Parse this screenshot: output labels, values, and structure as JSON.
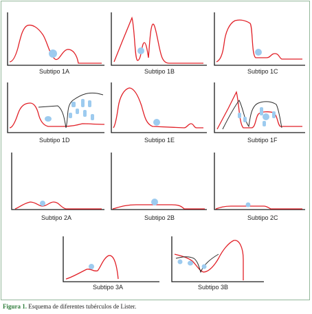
{
  "figure": {
    "panel_labels": {
      "1A": "Subtipo 1A",
      "1B": "Subtipo 1B",
      "1C": "Subtipo 1C",
      "1D": "Subtipo 1D",
      "1E": "Subtipo 1E",
      "1F": "Subtipo 1F",
      "2A": "Subtipo 2A",
      "2B": "Subtipo 2B",
      "2C": "Subtipo 2C",
      "3A": "Subtipo 3A",
      "3B": "Subtipo 3B"
    },
    "caption": {
      "lead": "Figura 1.",
      "text": " Esquema de diferentes tubérculos de Lister."
    }
  },
  "colors": {
    "profile_curve": "#e11f26",
    "overlay_curve": "#2a2a2a",
    "spot": "#9dcbef",
    "axis": "#1a1a1a",
    "caption_lead": "#2e7c3a",
    "frame": "#93b79a"
  }
}
